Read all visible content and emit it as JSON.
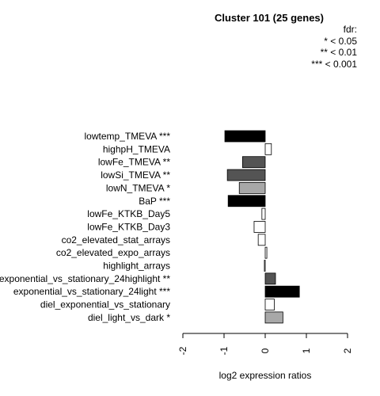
{
  "chart_data": {
    "type": "bar",
    "orientation": "horizontal",
    "title": "Cluster 101 (25 genes)",
    "xlabel": "log2 expression ratios",
    "ylabel": "",
    "xlim": [
      -2,
      2
    ],
    "x_ticks": [
      {
        "value": -2,
        "label": "-2"
      },
      {
        "value": -1,
        "label": "-1"
      },
      {
        "value": 0,
        "label": "0"
      },
      {
        "value": 1,
        "label": "1"
      },
      {
        "value": 2,
        "label": "2"
      }
    ],
    "legend": {
      "title": "fdr:",
      "entries": [
        "* < 0.05",
        "** < 0.01",
        "*** < 0.001"
      ],
      "placement": "top-right"
    },
    "bars": [
      {
        "label": "lowtemp_TMEVA ***",
        "value": -0.98,
        "color": "#000000"
      },
      {
        "label": "highpH_TMEVA",
        "value": 0.15,
        "color": "#ffffff"
      },
      {
        "label": "lowFe_TMEVA **",
        "value": -0.55,
        "color": "#545454"
      },
      {
        "label": "lowSi_TMEVA **",
        "value": -0.92,
        "color": "#545454"
      },
      {
        "label": "lowN_TMEVA *",
        "value": -0.63,
        "color": "#a8a8a8"
      },
      {
        "label": "BaP ***",
        "value": -0.9,
        "color": "#000000"
      },
      {
        "label": "lowFe_KTKB_Day5",
        "value": -0.08,
        "color": "#ffffff"
      },
      {
        "label": "lowFe_KTKB_Day3",
        "value": -0.27,
        "color": "#ffffff"
      },
      {
        "label": "co2_elevated_stat_arrays",
        "value": -0.17,
        "color": "#ffffff"
      },
      {
        "label": "co2_elevated_expo_arrays",
        "value": 0.04,
        "color": "#ffffff"
      },
      {
        "label": "highlight_arrays",
        "value": -0.02,
        "color": "#ffffff"
      },
      {
        "label": "exponential_vs_stationary_24highlight **",
        "value": 0.25,
        "color": "#545454"
      },
      {
        "label": "exponential_vs_stationary_24light ***",
        "value": 0.83,
        "color": "#000000"
      },
      {
        "label": "diel_exponential_vs_stationary",
        "value": 0.22,
        "color": "#ffffff"
      },
      {
        "label": "diel_light_vs_dark *",
        "value": 0.43,
        "color": "#a8a8a8"
      }
    ]
  }
}
